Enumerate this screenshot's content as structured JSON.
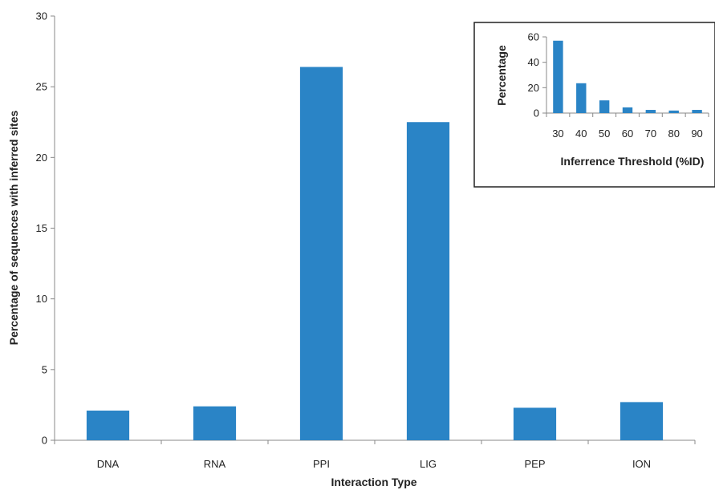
{
  "colors": {
    "bar": "#2a84c6",
    "axis": "#888888",
    "frame": "#222222"
  },
  "chart_data": [
    {
      "type": "bar",
      "categories": [
        "DNA",
        "RNA",
        "PPI",
        "LIG",
        "PEP",
        "ION"
      ],
      "values": [
        2.1,
        2.4,
        26.4,
        22.5,
        2.3,
        2.7
      ],
      "xlabel": "Interaction Type",
      "ylabel": "Percentage of sequences with inferred sites",
      "ylim": [
        0,
        30
      ],
      "yticks": [
        0,
        5,
        10,
        15,
        20,
        25,
        30
      ],
      "grid": false
    },
    {
      "type": "bar",
      "placement": "top-right inset",
      "categories": [
        "30",
        "40",
        "50",
        "60",
        "70",
        "80",
        "90"
      ],
      "values": [
        57,
        23.5,
        10,
        4.5,
        2.5,
        2,
        2.5
      ],
      "xlabel": "Inferrence Threshold (%ID)",
      "ylabel": "Percentage",
      "ylim": [
        0,
        60
      ],
      "yticks": [
        0,
        20,
        40,
        60
      ],
      "grid": false
    }
  ]
}
